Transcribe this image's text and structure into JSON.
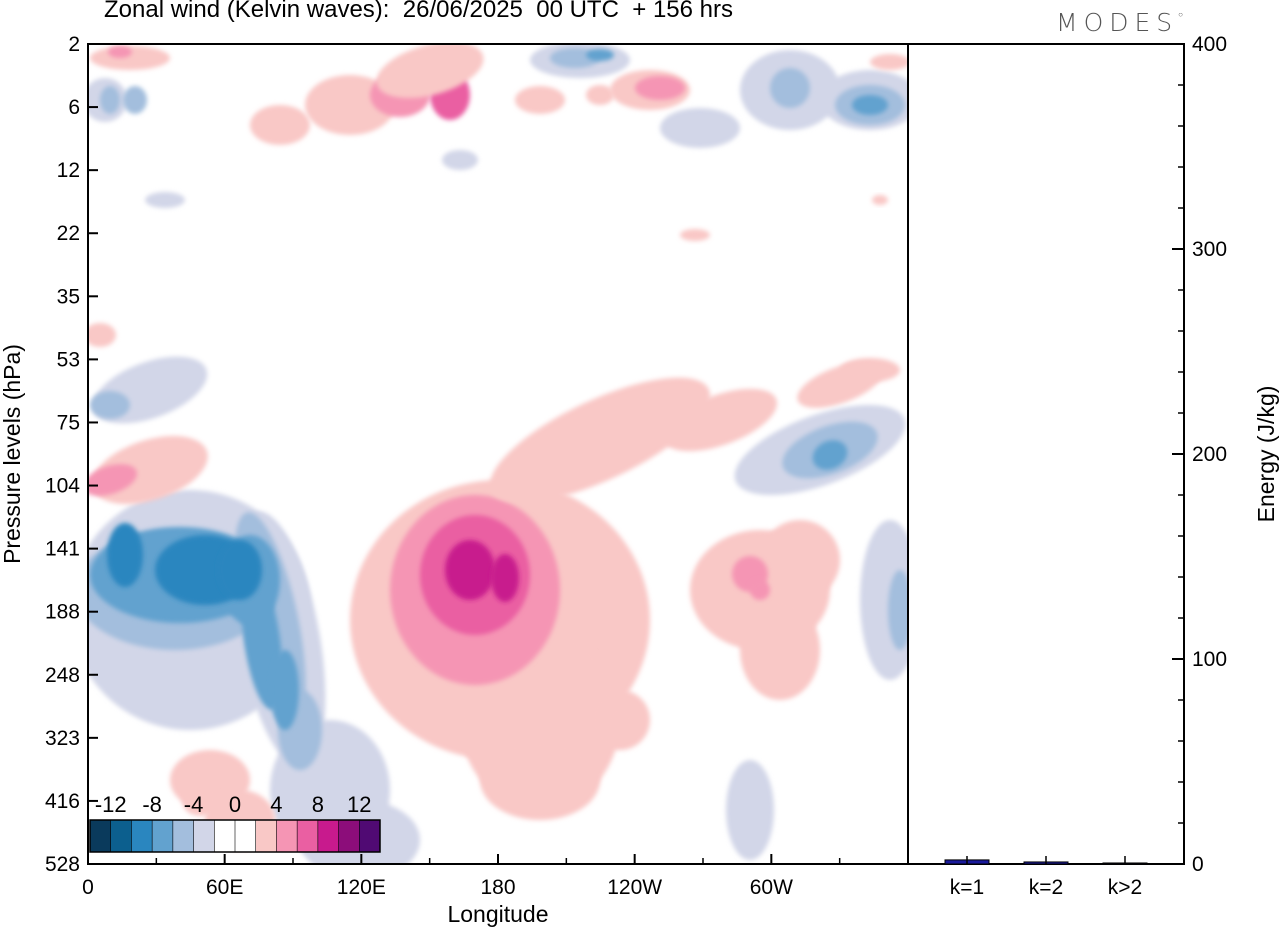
{
  "header": {
    "title": "Zonal wind (Kelvin waves):  26/06/2025  00 UTC  + 156 hrs",
    "brand": "MODES"
  },
  "chart_data": [
    {
      "type": "heatmap",
      "title": "Zonal wind (Kelvin waves):  26/06/2025  00 UTC  + 156 hrs",
      "xlabel": "Longitude",
      "ylabel": "Pressure levels (hPa)",
      "x_ticks": [
        "0",
        "60E",
        "120E",
        "180",
        "120W",
        "60W"
      ],
      "x_range_deg": [
        0,
        360
      ],
      "y_ticks": [
        "2",
        "6",
        "12",
        "22",
        "35",
        "53",
        "75",
        "104",
        "141",
        "188",
        "248",
        "323",
        "416",
        "528"
      ],
      "colorbar": {
        "labels": [
          "-12",
          "-8",
          "-4",
          "0",
          "4",
          "8",
          "12"
        ],
        "colors": [
          "#0a3a5c",
          "#0c5f8e",
          "#2a86bf",
          "#62a2cf",
          "#a3bedd",
          "#d2d6e8",
          "#ffffff",
          "#ffffff",
          "#f9c8c6",
          "#f595b4",
          "#ea5fa2",
          "#c81a8d",
          "#8c0d7a",
          "#500a73"
        ]
      },
      "features": [
        {
          "name": "westerly anomaly core near dateline",
          "lon_deg": 172,
          "hpa": 150,
          "value": 10
        },
        {
          "name": "easterly anomaly Indian Ocean",
          "lon_deg": 40,
          "hpa": 150,
          "value": -10
        },
        {
          "name": "easterly anomaly east Pacific upper",
          "lon_deg": 325,
          "hpa": 90,
          "value": -6
        },
        {
          "name": "westerly anomaly Americas",
          "lon_deg": 300,
          "hpa": 160,
          "value": 5
        }
      ]
    },
    {
      "type": "bar",
      "categories": [
        "k=1",
        "k=2",
        "k>2"
      ],
      "values": [
        2,
        1,
        0.5
      ],
      "ylabel": "Energy (J/kg)",
      "ylim": [
        0,
        400
      ],
      "y_ticks": [
        "0",
        "100",
        "200",
        "300",
        "400"
      ],
      "bar_color": "#1a1a9c"
    }
  ]
}
